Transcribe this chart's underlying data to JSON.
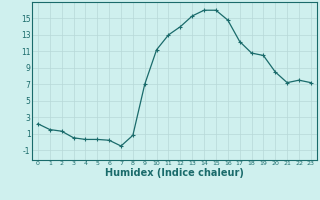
{
  "x": [
    0,
    1,
    2,
    3,
    4,
    5,
    6,
    7,
    8,
    9,
    10,
    11,
    12,
    13,
    14,
    15,
    16,
    17,
    18,
    19,
    20,
    21,
    22,
    23
  ],
  "y": [
    2.2,
    1.5,
    1.3,
    0.5,
    0.3,
    0.3,
    0.2,
    -0.5,
    0.8,
    7.0,
    11.2,
    13.0,
    14.0,
    15.3,
    16.0,
    16.0,
    14.8,
    12.2,
    10.8,
    10.5,
    8.5,
    7.2,
    7.5,
    7.2
  ],
  "line_color": "#1a6b6b",
  "marker": "+",
  "marker_size": 3,
  "marker_linewidth": 0.8,
  "xlabel": "Humidex (Indice chaleur)",
  "xlabel_fontsize": 7,
  "ylabel_ticks": [
    -1,
    1,
    3,
    5,
    7,
    9,
    11,
    13,
    15
  ],
  "xlim": [
    -0.5,
    23.5
  ],
  "ylim": [
    -2.2,
    17
  ],
  "bg_color": "#cff0ee",
  "grid_color": "#b8d8d8",
  "tick_color": "#1a6b6b",
  "tick_label_color": "#1a6b6b",
  "tick_fontsize_x": 4.5,
  "tick_fontsize_y": 5.5,
  "line_width": 0.9
}
